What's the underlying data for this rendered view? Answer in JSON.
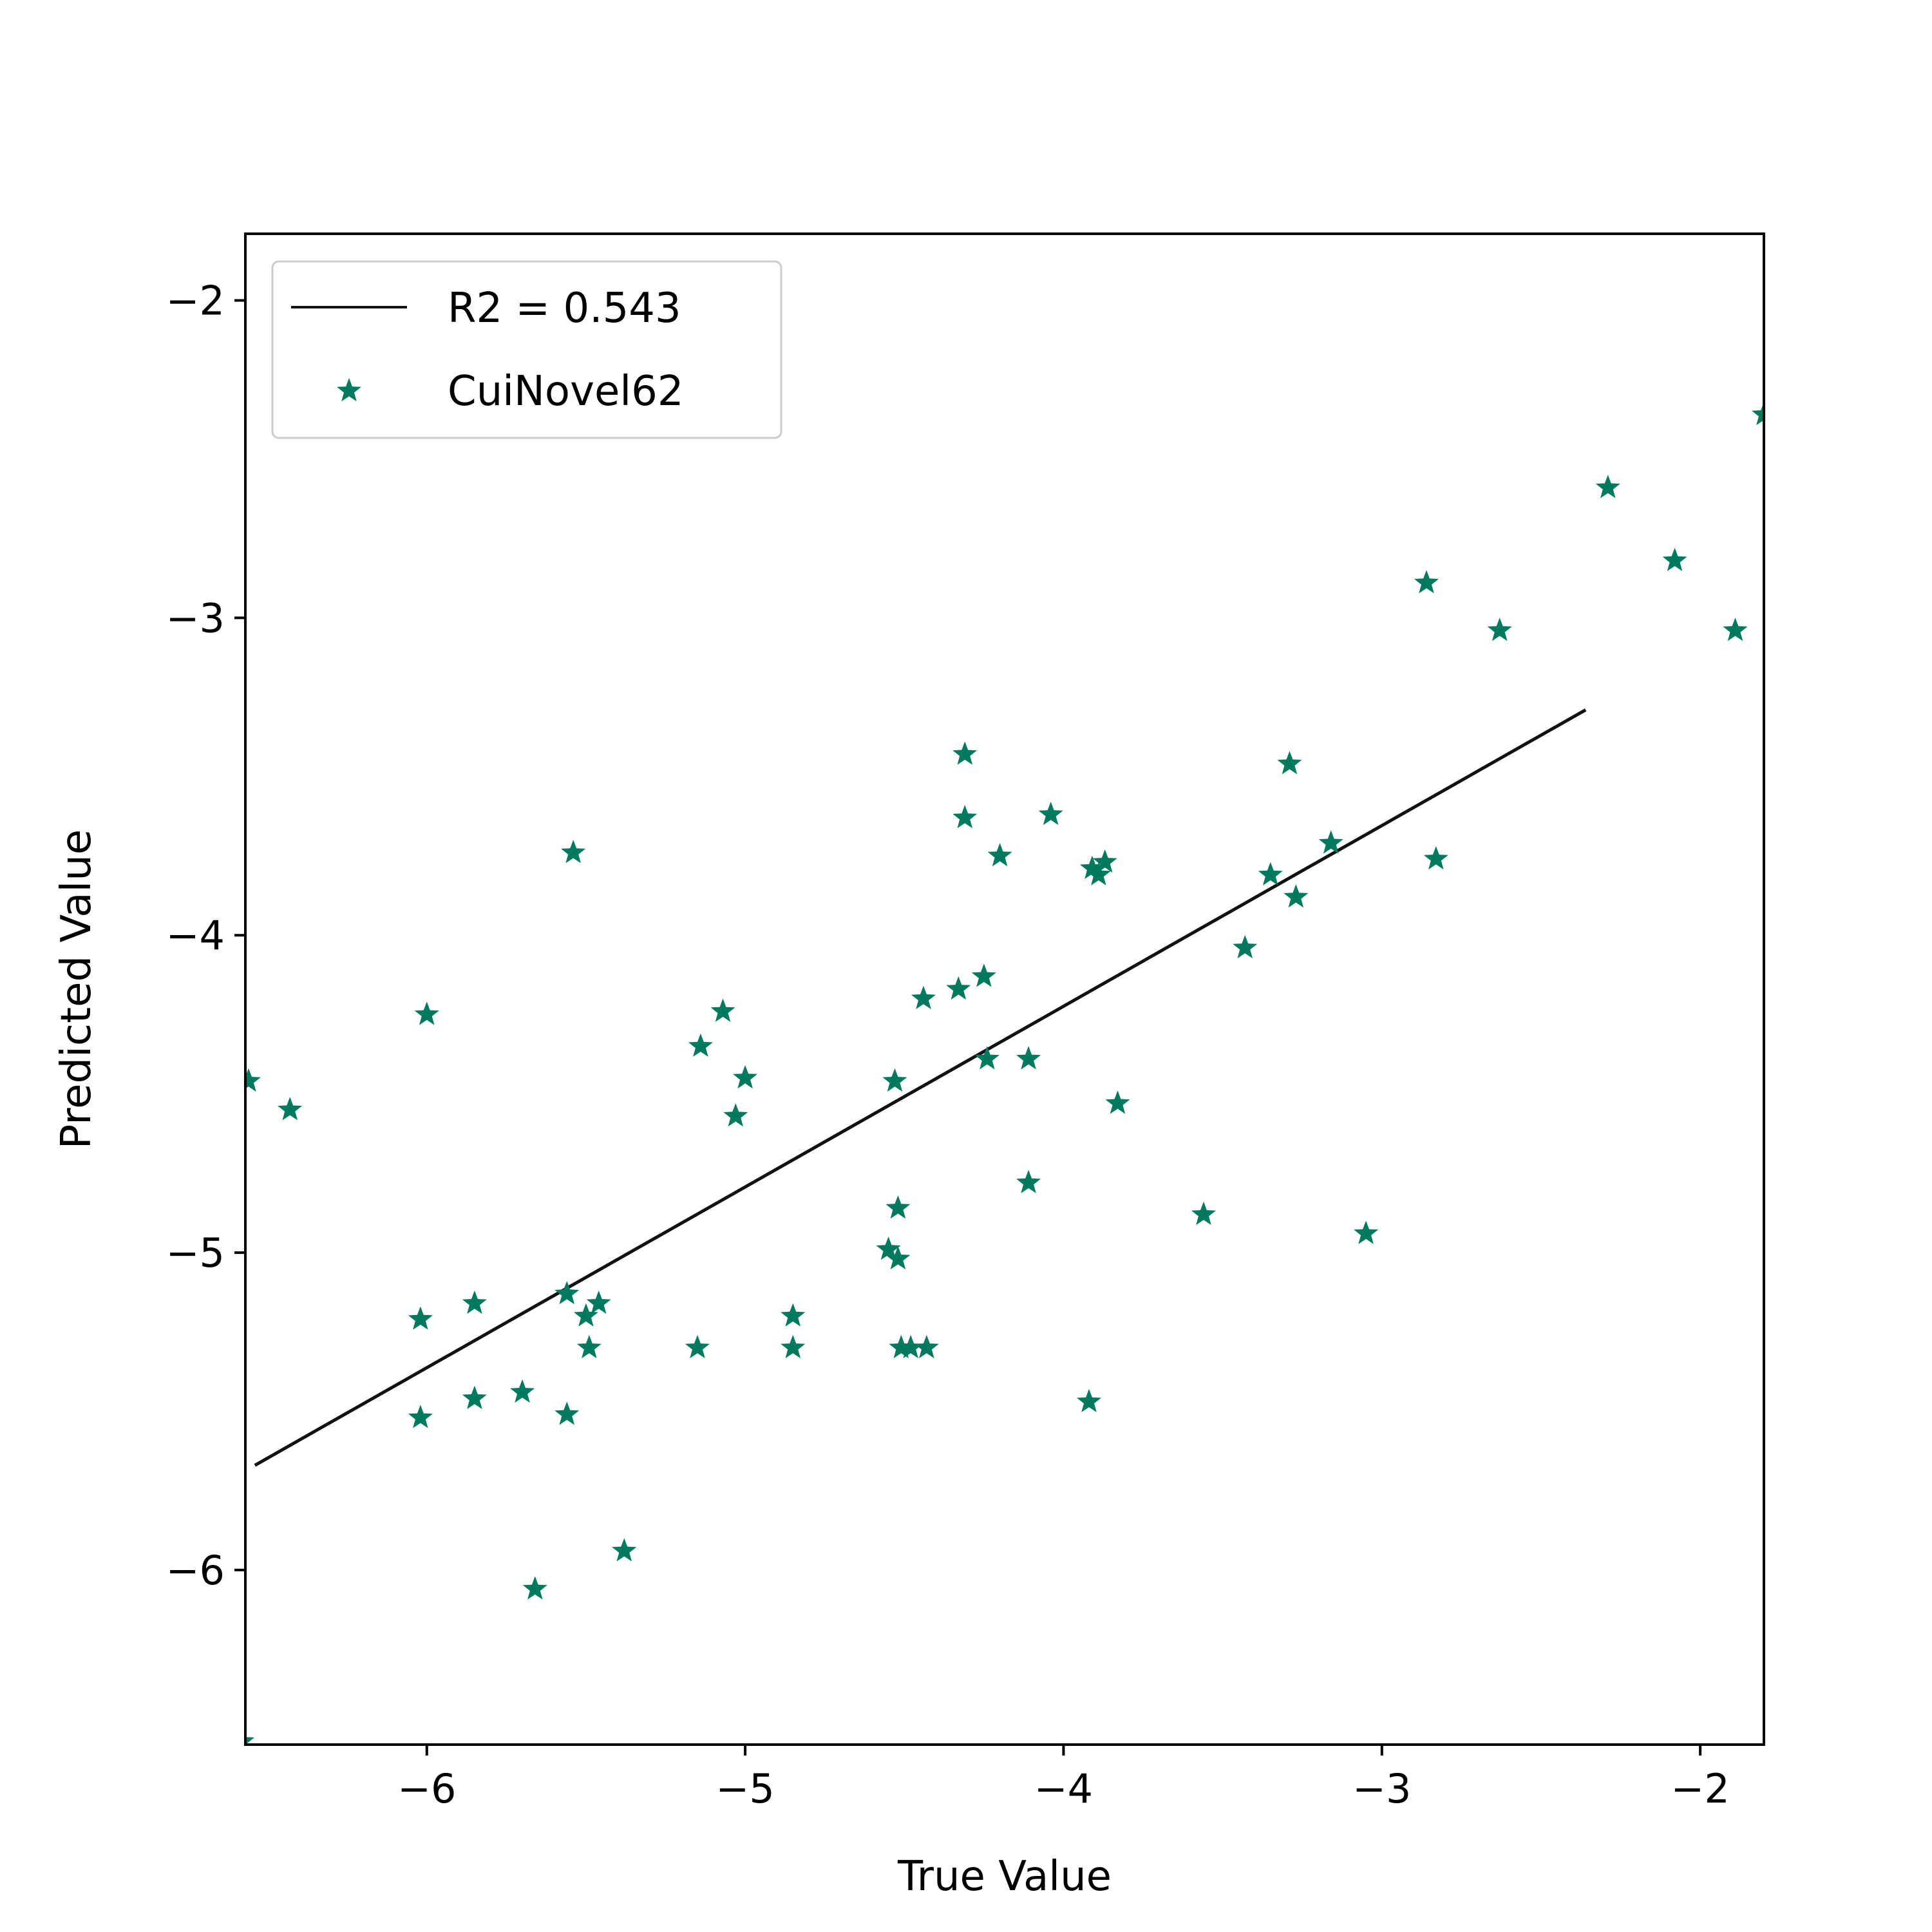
{
  "chart_data": {
    "type": "scatter",
    "xlabel": "True Value",
    "ylabel": "Predicted Value",
    "xlim": [
      -6.57,
      -1.8
    ],
    "ylim": [
      -6.55,
      -1.79
    ],
    "x_ticks": [
      -6,
      -5,
      -4,
      -3,
      -2
    ],
    "x_tick_labels": [
      "−6",
      "−5",
      "−4",
      "−3",
      "−2"
    ],
    "y_ticks": [
      -6,
      -5,
      -4,
      -3,
      -2
    ],
    "y_tick_labels": [
      "−6",
      "−5",
      "−4",
      "−3",
      "−2"
    ],
    "grid": false,
    "legend_position": "top-left",
    "series": [
      {
        "name": "R2 = 0.543",
        "type": "line",
        "color": "#111111",
        "points": [
          [
            -6.54,
            -5.67
          ],
          [
            -2.36,
            -3.29
          ]
        ]
      },
      {
        "name": "CuiNovel62",
        "type": "scatter",
        "marker": "star",
        "color": "#007a5e",
        "points": [
          [
            -6.56,
            -4.46
          ],
          [
            -6.43,
            -4.55
          ],
          [
            -6.58,
            -6.54
          ],
          [
            -6.0,
            -4.25
          ],
          [
            -6.02,
            -5.21
          ],
          [
            -6.02,
            -5.52
          ],
          [
            -5.85,
            -5.16
          ],
          [
            -5.85,
            -5.46
          ],
          [
            -5.7,
            -5.44
          ],
          [
            -5.66,
            -6.06
          ],
          [
            -5.56,
            -5.13
          ],
          [
            -5.56,
            -5.51
          ],
          [
            -5.54,
            -3.74
          ],
          [
            -5.5,
            -5.2
          ],
          [
            -5.49,
            -5.3
          ],
          [
            -5.46,
            -5.16
          ],
          [
            -5.38,
            -5.94
          ],
          [
            -5.15,
            -5.3
          ],
          [
            -5.14,
            -4.35
          ],
          [
            -5.07,
            -4.24
          ],
          [
            -5.03,
            -4.57
          ],
          [
            -5.0,
            -4.45
          ],
          [
            -4.85,
            -5.2
          ],
          [
            -4.85,
            -5.3
          ],
          [
            -4.55,
            -4.99
          ],
          [
            -4.53,
            -4.46
          ],
          [
            -4.52,
            -4.86
          ],
          [
            -4.52,
            -5.02
          ],
          [
            -4.51,
            -5.3
          ],
          [
            -4.48,
            -5.3
          ],
          [
            -4.44,
            -4.2
          ],
          [
            -4.43,
            -5.3
          ],
          [
            -4.33,
            -4.17
          ],
          [
            -4.31,
            -3.43
          ],
          [
            -4.31,
            -3.63
          ],
          [
            -4.25,
            -4.13
          ],
          [
            -4.24,
            -4.39
          ],
          [
            -4.2,
            -3.75
          ],
          [
            -4.11,
            -4.39
          ],
          [
            -4.11,
            -4.78
          ],
          [
            -4.04,
            -3.62
          ],
          [
            -3.92,
            -5.47
          ],
          [
            -3.91,
            -3.79
          ],
          [
            -3.89,
            -3.81
          ],
          [
            -3.87,
            -3.77
          ],
          [
            -3.83,
            -4.53
          ],
          [
            -3.56,
            -4.88
          ],
          [
            -3.43,
            -4.04
          ],
          [
            -3.35,
            -3.81
          ],
          [
            -3.29,
            -3.46
          ],
          [
            -3.27,
            -3.88
          ],
          [
            -3.16,
            -3.71
          ],
          [
            -3.05,
            -4.94
          ],
          [
            -2.86,
            -2.89
          ],
          [
            -2.83,
            -3.76
          ],
          [
            -2.63,
            -3.04
          ],
          [
            -2.29,
            -2.59
          ],
          [
            -2.08,
            -2.82
          ],
          [
            -1.89,
            -3.04
          ],
          [
            -1.8,
            -2.36
          ]
        ]
      }
    ]
  }
}
